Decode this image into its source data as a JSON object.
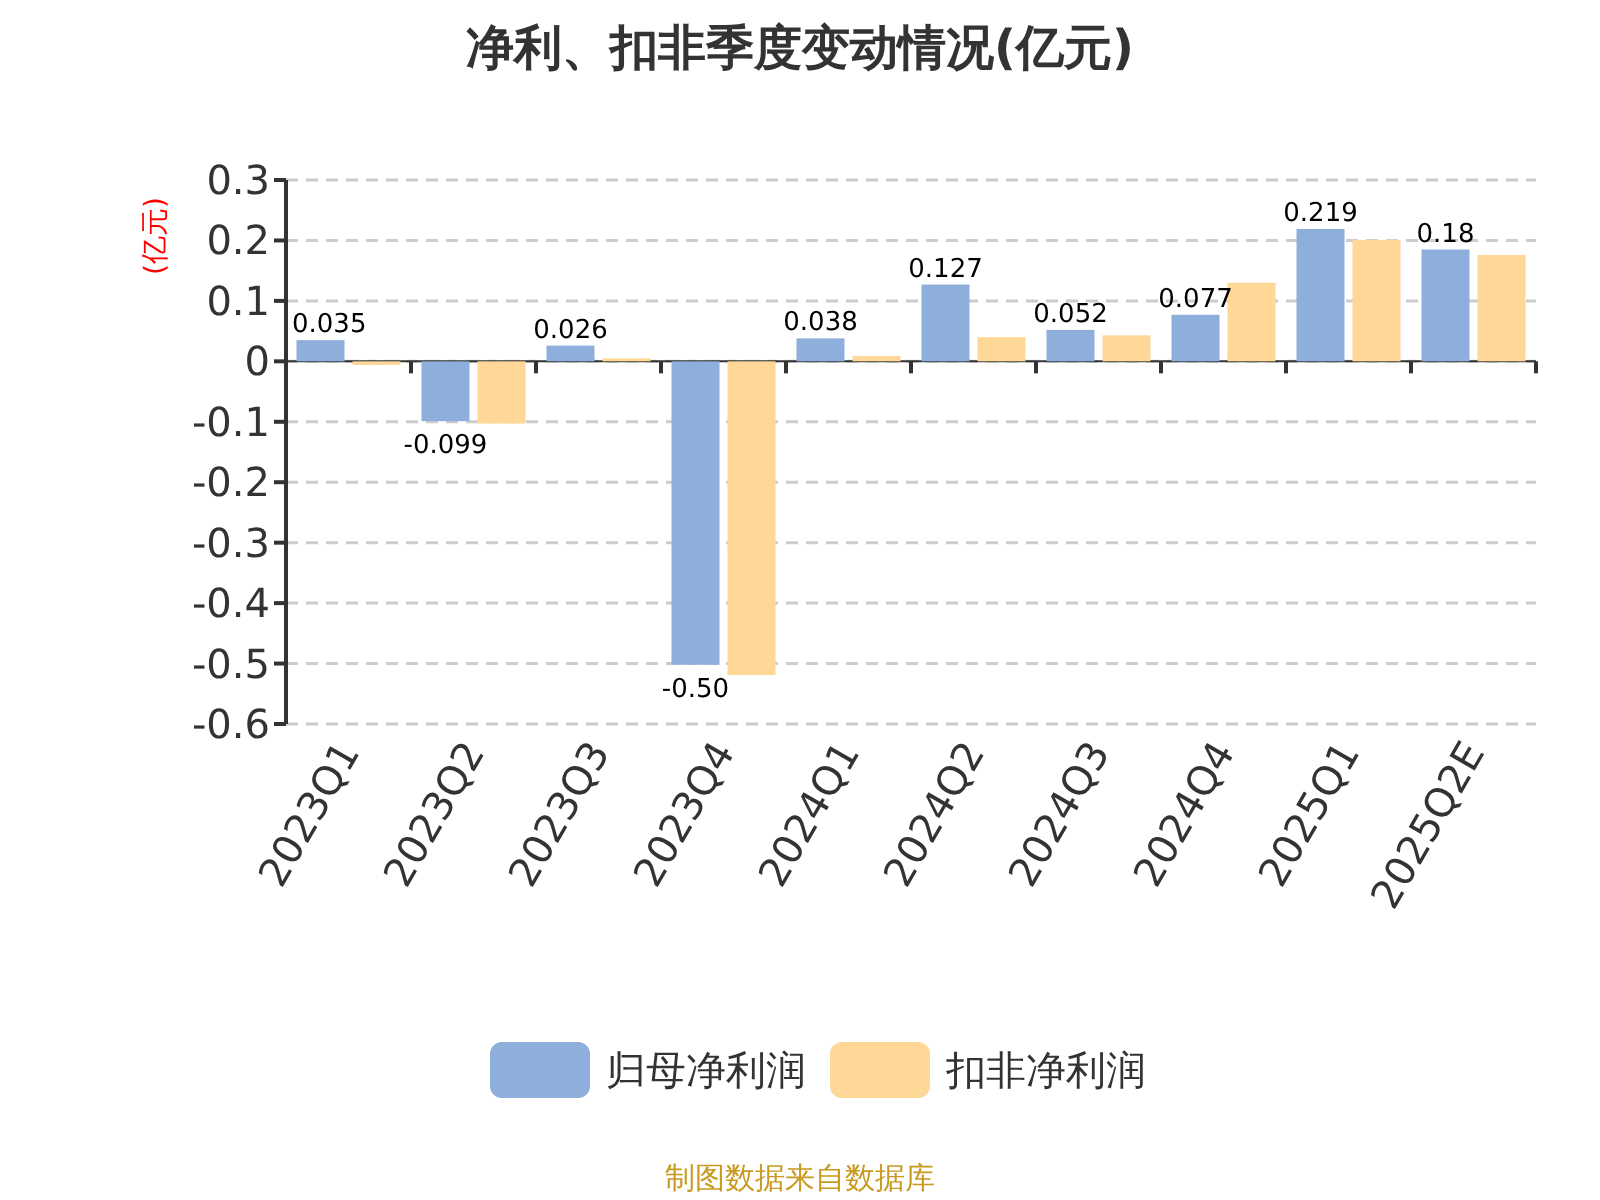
{
  "chart_data": {
    "type": "bar",
    "title": "净利、扣非季度变动情况(亿元)",
    "ylabel": "(亿元)",
    "categories": [
      "2023Q1",
      "2023Q2",
      "2023Q3",
      "2023Q4",
      "2024Q1",
      "2024Q2",
      "2024Q3",
      "2024Q4",
      "2025Q1",
      "2025Q2E"
    ],
    "series": [
      {
        "name": "归母净利润",
        "color": "#8eaedb",
        "values": [
          0.035,
          -0.099,
          0.026,
          -0.502,
          0.038,
          0.127,
          0.052,
          0.077,
          0.219,
          0.185
        ],
        "value_labels": [
          "0.035",
          "-0.099",
          "0.026",
          "-0.50",
          "0.038",
          "0.127",
          "0.052",
          "0.077",
          "0.219",
          "0.18"
        ]
      },
      {
        "name": "扣非净利润",
        "color": "#ffd898",
        "values": [
          -0.006,
          -0.103,
          0.005,
          -0.519,
          0.009,
          0.04,
          0.043,
          0.13,
          0.201,
          0.176
        ]
      }
    ],
    "ylim": [
      -0.6,
      0.3
    ],
    "yticks": [
      -0.6,
      -0.5,
      -0.4,
      -0.3,
      -0.2,
      -0.1,
      0,
      0.1,
      0.2,
      0.3
    ],
    "grid": "y",
    "legend": "bottom",
    "annotations": [
      "制图数据来自数据库"
    ]
  }
}
